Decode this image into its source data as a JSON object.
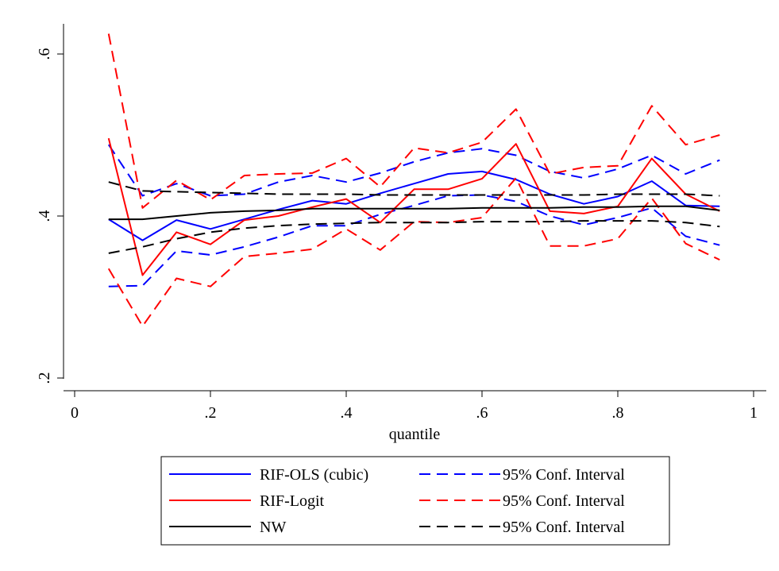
{
  "chart_data": {
    "type": "line",
    "xlabel": "quantile",
    "ylabel": "",
    "xlim": [
      0,
      1
    ],
    "ylim": [
      0.2,
      0.65
    ],
    "x_ticks": [
      0,
      0.2,
      0.4,
      0.6,
      0.8,
      1
    ],
    "x_tick_labels": [
      "0",
      ".2",
      ".4",
      ".6",
      ".8",
      "1"
    ],
    "y_ticks": [
      0.2,
      0.4,
      0.6
    ],
    "y_tick_labels": [
      ".2",
      ".4",
      ".6"
    ],
    "grid": false,
    "legend_placement": "bottom",
    "x": [
      0.05,
      0.1,
      0.15,
      0.2,
      0.25,
      0.3,
      0.35,
      0.4,
      0.45,
      0.5,
      0.55,
      0.6,
      0.65,
      0.7,
      0.75,
      0.8,
      0.85,
      0.9,
      0.95
    ],
    "series": [
      {
        "name": "RIF-OLS (cubic)",
        "color": "#0000ff",
        "dash": false,
        "values": [
          0.396,
          0.37,
          0.395,
          0.384,
          0.396,
          0.408,
          0.419,
          0.415,
          0.428,
          0.44,
          0.452,
          0.455,
          0.445,
          0.427,
          0.415,
          0.424,
          0.443,
          0.413,
          0.412
        ]
      },
      {
        "name": "95% Conf. Interval",
        "color": "#0000ff",
        "dash": true,
        "values": [
          0.488,
          0.425,
          0.44,
          0.425,
          0.427,
          0.442,
          0.45,
          0.442,
          0.453,
          0.467,
          0.478,
          0.483,
          0.475,
          0.455,
          0.447,
          0.458,
          0.475,
          0.452,
          0.469
        ]
      },
      {
        "name": "",
        "color": "#0000ff",
        "dash": true,
        "values": [
          0.313,
          0.314,
          0.357,
          0.352,
          0.362,
          0.374,
          0.388,
          0.388,
          0.402,
          0.413,
          0.425,
          0.426,
          0.418,
          0.4,
          0.389,
          0.398,
          0.41,
          0.375,
          0.364
        ]
      },
      {
        "name": "RIF-Logit",
        "color": "#ff0000",
        "dash": false,
        "values": [
          0.496,
          0.327,
          0.38,
          0.365,
          0.395,
          0.4,
          0.411,
          0.421,
          0.392,
          0.433,
          0.433,
          0.446,
          0.489,
          0.406,
          0.403,
          0.412,
          0.471,
          0.427,
          0.406
        ]
      },
      {
        "name": "95% Conf. Interval",
        "color": "#ff0000",
        "dash": true,
        "values": [
          0.625,
          0.41,
          0.444,
          0.42,
          0.45,
          0.452,
          0.453,
          0.471,
          0.436,
          0.484,
          0.478,
          0.491,
          0.532,
          0.452,
          0.46,
          0.462,
          0.536,
          0.488,
          0.5
        ]
      },
      {
        "name": "",
        "color": "#ff0000",
        "dash": true,
        "values": [
          0.335,
          0.264,
          0.323,
          0.313,
          0.35,
          0.354,
          0.359,
          0.384,
          0.358,
          0.393,
          0.392,
          0.398,
          0.447,
          0.363,
          0.363,
          0.372,
          0.422,
          0.366,
          0.346
        ]
      },
      {
        "name": "NW",
        "color": "#000000",
        "dash": false,
        "values": [
          0.396,
          0.396,
          0.4,
          0.404,
          0.406,
          0.407,
          0.409,
          0.409,
          0.409,
          0.409,
          0.409,
          0.41,
          0.41,
          0.41,
          0.411,
          0.411,
          0.412,
          0.412,
          0.407
        ]
      },
      {
        "name": "95% Conf. Interval",
        "color": "#000000",
        "dash": true,
        "values": [
          0.442,
          0.431,
          0.43,
          0.429,
          0.428,
          0.427,
          0.427,
          0.427,
          0.426,
          0.426,
          0.426,
          0.426,
          0.426,
          0.426,
          0.426,
          0.427,
          0.427,
          0.427,
          0.425
        ]
      },
      {
        "name": "",
        "color": "#000000",
        "dash": true,
        "values": [
          0.354,
          0.362,
          0.372,
          0.38,
          0.385,
          0.388,
          0.39,
          0.391,
          0.392,
          0.392,
          0.392,
          0.393,
          0.393,
          0.393,
          0.394,
          0.394,
          0.394,
          0.392,
          0.387
        ]
      }
    ],
    "legend": [
      {
        "label": "RIF-OLS (cubic)",
        "color": "#0000ff",
        "dash": false
      },
      {
        "label": "95% Conf. Interval",
        "color": "#0000ff",
        "dash": true
      },
      {
        "label": "RIF-Logit",
        "color": "#ff0000",
        "dash": false
      },
      {
        "label": "95% Conf. Interval",
        "color": "#ff0000",
        "dash": true
      },
      {
        "label": "NW",
        "color": "#000000",
        "dash": false
      },
      {
        "label": "95% Conf. Interval",
        "color": "#000000",
        "dash": true
      }
    ]
  }
}
